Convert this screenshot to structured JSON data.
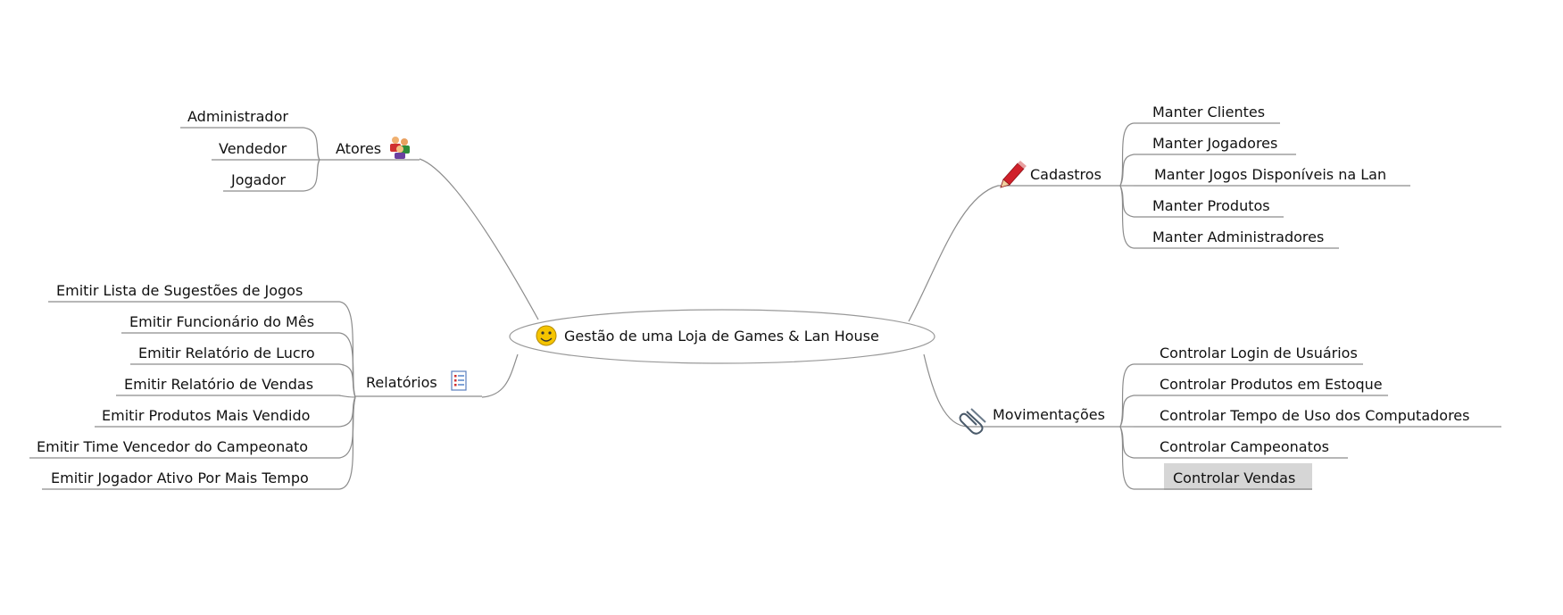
{
  "central": {
    "label": "Gestão de uma Loja de Games & Lan House",
    "icon": "smiley-icon"
  },
  "branches": {
    "atores": {
      "label": "Atores",
      "icon": "people-icon",
      "children": [
        "Administrador",
        "Vendedor",
        "Jogador"
      ]
    },
    "relatorios": {
      "label": "Relatórios",
      "icon": "list-icon",
      "children": [
        "Emitir Lista de Sugestões de Jogos",
        "Emitir Funcionário do Mês",
        "Emitir Relatório de Lucro",
        "Emitir Relatório de Vendas",
        "Emitir Produtos Mais Vendido",
        "Emitir Time Vencedor do Campeonato",
        "Emitir Jogador Ativo Por Mais Tempo"
      ]
    },
    "cadastros": {
      "label": "Cadastros",
      "icon": "pencil-icon",
      "children": [
        "Manter Clientes",
        "Manter Jogadores",
        "Manter Jogos Disponíveis na Lan",
        "Manter Produtos",
        "Manter Administradores"
      ]
    },
    "movimentacoes": {
      "label": "Movimentações",
      "icon": "paperclip-icon",
      "children": [
        "Controlar Login de Usuários",
        "Controlar Produtos em Estoque",
        "Controlar Tempo de Uso dos Computadores",
        "Controlar Campeonatos",
        "Controlar Vendas"
      ],
      "selected": "Controlar Vendas"
    }
  },
  "colors": {
    "line": "#8c8c8c",
    "selected_bg": "#d6d6d6",
    "pencil": "#d0202a",
    "smiley": "#f5c400"
  }
}
